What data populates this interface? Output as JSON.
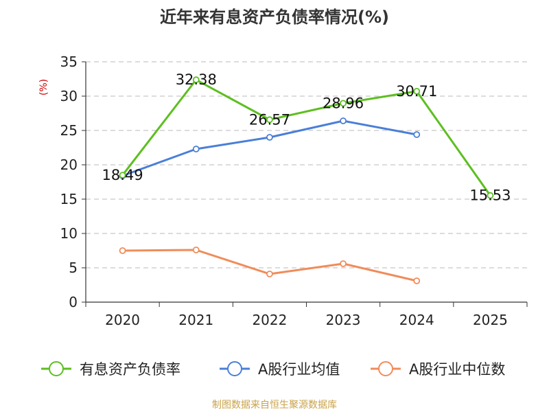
{
  "title": "近年来有息资产负债率情况(%)",
  "unit_label": "(%)",
  "source": "制图数据来自恒生聚源数据库",
  "chart_data": {
    "type": "line",
    "title": "近年来有息资产负债率情况(%)",
    "ylabel": "(%)",
    "xlabel": "",
    "categories": [
      "2020",
      "2021",
      "2022",
      "2023",
      "2024",
      "2025"
    ],
    "ylim": [
      0,
      35
    ],
    "yticks": [
      0,
      5,
      10,
      15,
      20,
      25,
      30,
      35
    ],
    "grid": true,
    "legend_position": "bottom",
    "series": [
      {
        "name": "有息资产负债率",
        "color": "#5cbf1f",
        "values": [
          18.49,
          32.38,
          26.57,
          28.96,
          30.71,
          15.53
        ],
        "labels": [
          "18.49",
          "32.38",
          "26.57",
          "28.96",
          "30.71",
          "15.53"
        ]
      },
      {
        "name": "A股行业均值",
        "color": "#4a7fd8",
        "values": [
          18.4,
          22.3,
          24.0,
          26.4,
          24.4,
          null
        ]
      },
      {
        "name": "A股行业中位数",
        "color": "#f08c5a",
        "values": [
          7.5,
          7.6,
          4.1,
          5.6,
          3.1,
          null
        ]
      }
    ]
  }
}
